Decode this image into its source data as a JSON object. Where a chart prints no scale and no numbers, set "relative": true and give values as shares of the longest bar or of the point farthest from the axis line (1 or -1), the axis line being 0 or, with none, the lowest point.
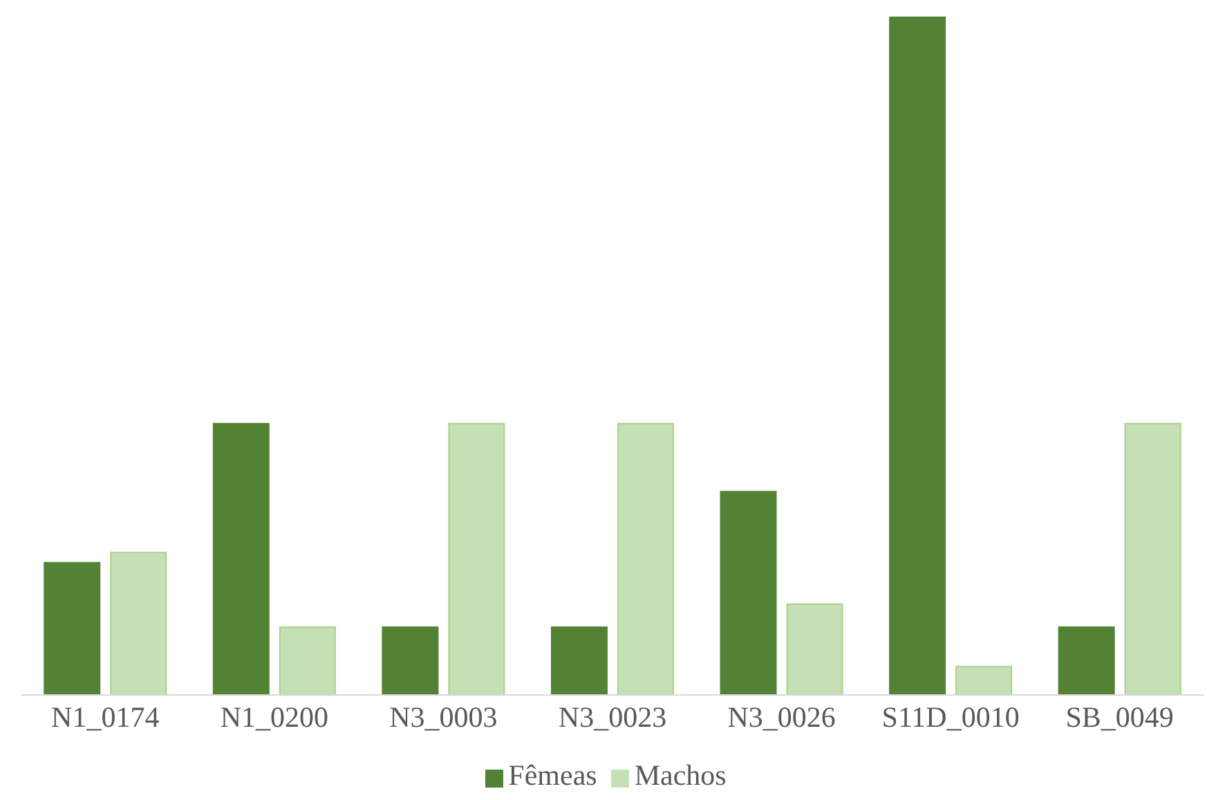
{
  "chart_data": {
    "type": "bar",
    "relative": true,
    "categories": [
      "N1_0174",
      "N1_0200",
      "N3_0003",
      "N3_0023",
      "N3_0026",
      "S11D_0010",
      "SB_0049"
    ],
    "series": [
      {
        "name": "Fêmeas",
        "color": "#548235",
        "values": [
          0.195,
          0.4,
          0.1,
          0.1,
          0.3,
          1,
          0.1
        ]
      },
      {
        "name": "Machos",
        "color": "#c5e0b4",
        "values": [
          0.21,
          0.1,
          0.4,
          0.4,
          0.134,
          0.042,
          0.4
        ]
      }
    ],
    "legend": "bottom"
  }
}
